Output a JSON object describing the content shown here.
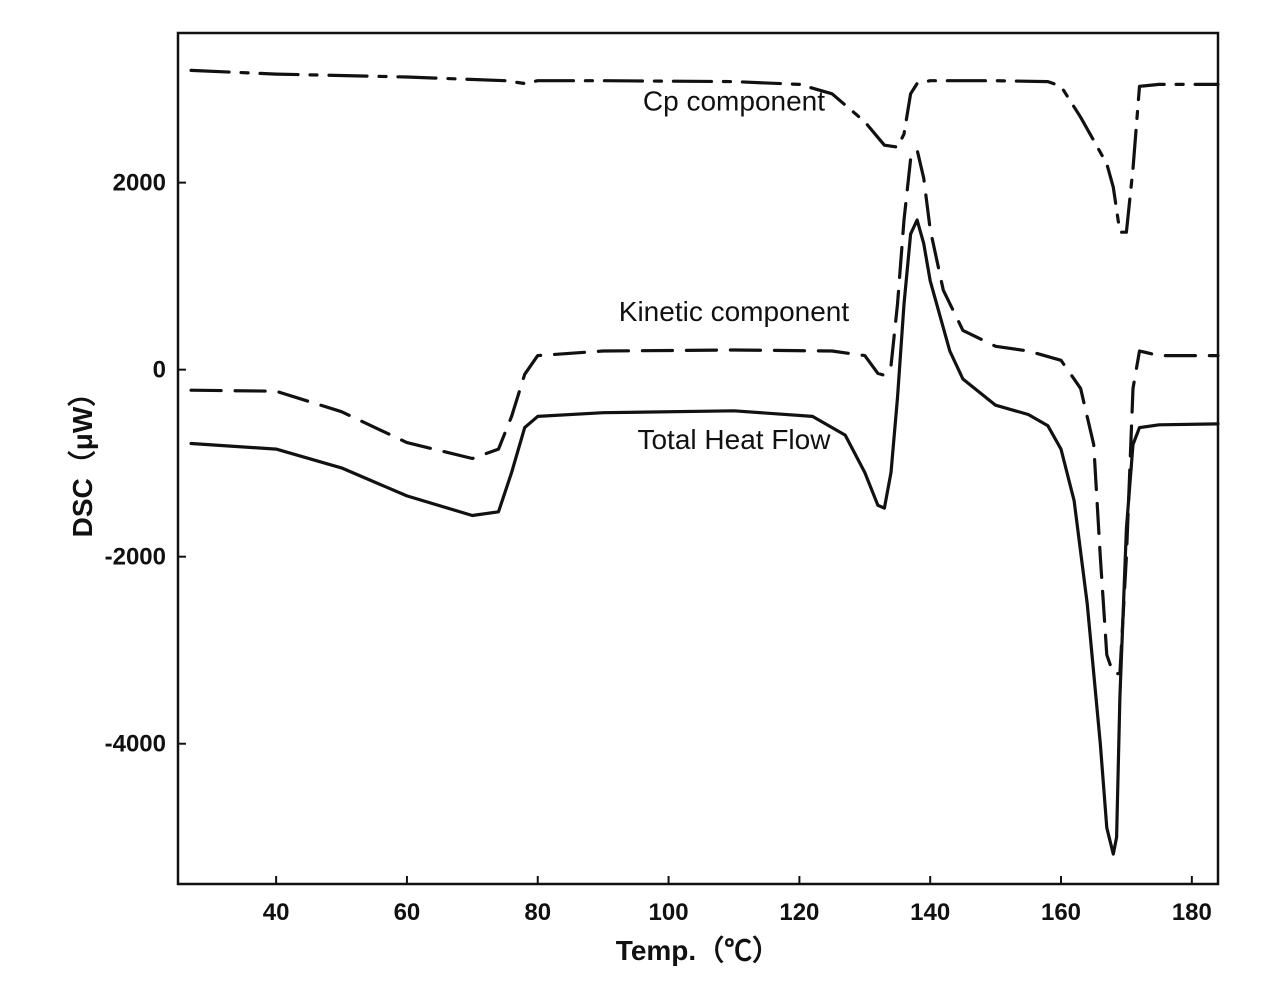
{
  "chart_data": {
    "type": "line",
    "title": "",
    "xlabel": "Temp.（℃）",
    "ylabel": "DSC（μW）",
    "xlim": [
      25,
      184
    ],
    "ylim": [
      -5500,
      3600
    ],
    "x_ticks": [
      40,
      60,
      80,
      100,
      120,
      140,
      160,
      180
    ],
    "y_ticks": [
      2000,
      0,
      -2000,
      -4000
    ],
    "grid": false,
    "legend": "none",
    "annotations": [
      {
        "text": "Cp component",
        "x": 110,
        "y": 2770
      },
      {
        "text": "Kinetic component",
        "x": 110,
        "y": 520
      },
      {
        "text": "Total Heat Flow",
        "x": 110,
        "y": -850
      }
    ],
    "series": [
      {
        "style": "dashdot",
        "points": [
          [
            27,
            3200
          ],
          [
            40,
            3160
          ],
          [
            60,
            3130
          ],
          [
            75,
            3090
          ],
          [
            78,
            3060
          ],
          [
            80,
            3090
          ],
          [
            90,
            3090
          ],
          [
            110,
            3080
          ],
          [
            120,
            3050
          ],
          [
            125,
            2950
          ],
          [
            130,
            2650
          ],
          [
            133,
            2400
          ],
          [
            135,
            2380
          ],
          [
            136,
            2520
          ],
          [
            137,
            2950
          ],
          [
            138,
            3060
          ],
          [
            140,
            3090
          ],
          [
            150,
            3090
          ],
          [
            158,
            3080
          ],
          [
            160,
            3030
          ],
          [
            163,
            2700
          ],
          [
            165,
            2450
          ],
          [
            167,
            2200
          ],
          [
            168,
            1950
          ],
          [
            169,
            1470
          ],
          [
            170,
            1470
          ],
          [
            171,
            2150
          ],
          [
            172,
            3030
          ],
          [
            175,
            3050
          ],
          [
            184,
            3050
          ]
        ]
      },
      {
        "style": "dashed",
        "points": [
          [
            27,
            -220
          ],
          [
            40,
            -230
          ],
          [
            50,
            -450
          ],
          [
            60,
            -780
          ],
          [
            70,
            -950
          ],
          [
            74,
            -850
          ],
          [
            76,
            -500
          ],
          [
            78,
            -50
          ],
          [
            80,
            150
          ],
          [
            90,
            200
          ],
          [
            110,
            210
          ],
          [
            125,
            200
          ],
          [
            130,
            150
          ],
          [
            132,
            -40
          ],
          [
            133,
            -60
          ],
          [
            134,
            40
          ],
          [
            135,
            700
          ],
          [
            136,
            1600
          ],
          [
            137,
            2250
          ],
          [
            138,
            2350
          ],
          [
            139,
            2050
          ],
          [
            140,
            1500
          ],
          [
            142,
            850
          ],
          [
            145,
            420
          ],
          [
            150,
            250
          ],
          [
            155,
            200
          ],
          [
            160,
            100
          ],
          [
            163,
            -200
          ],
          [
            165,
            -800
          ],
          [
            166,
            -2000
          ],
          [
            167,
            -3050
          ],
          [
            168,
            -3250
          ],
          [
            169,
            -3250
          ],
          [
            170,
            -2000
          ],
          [
            171,
            -200
          ],
          [
            172,
            200
          ],
          [
            175,
            150
          ],
          [
            184,
            150
          ]
        ]
      },
      {
        "style": "solid",
        "points": [
          [
            27,
            -790
          ],
          [
            40,
            -850
          ],
          [
            50,
            -1050
          ],
          [
            60,
            -1350
          ],
          [
            70,
            -1560
          ],
          [
            74,
            -1520
          ],
          [
            76,
            -1100
          ],
          [
            78,
            -620
          ],
          [
            80,
            -500
          ],
          [
            90,
            -460
          ],
          [
            110,
            -440
          ],
          [
            122,
            -500
          ],
          [
            127,
            -700
          ],
          [
            130,
            -1100
          ],
          [
            132,
            -1450
          ],
          [
            133,
            -1480
          ],
          [
            134,
            -1100
          ],
          [
            135,
            -300
          ],
          [
            136,
            700
          ],
          [
            137,
            1450
          ],
          [
            138,
            1600
          ],
          [
            139,
            1350
          ],
          [
            140,
            950
          ],
          [
            143,
            200
          ],
          [
            145,
            -100
          ],
          [
            150,
            -380
          ],
          [
            155,
            -480
          ],
          [
            158,
            -600
          ],
          [
            160,
            -850
          ],
          [
            162,
            -1400
          ],
          [
            164,
            -2500
          ],
          [
            166,
            -4000
          ],
          [
            167,
            -4900
          ],
          [
            168,
            -5180
          ],
          [
            168.5,
            -5000
          ],
          [
            169,
            -3500
          ],
          [
            170,
            -1700
          ],
          [
            171,
            -800
          ],
          [
            172,
            -620
          ],
          [
            175,
            -590
          ],
          [
            184,
            -580
          ]
        ]
      }
    ]
  }
}
